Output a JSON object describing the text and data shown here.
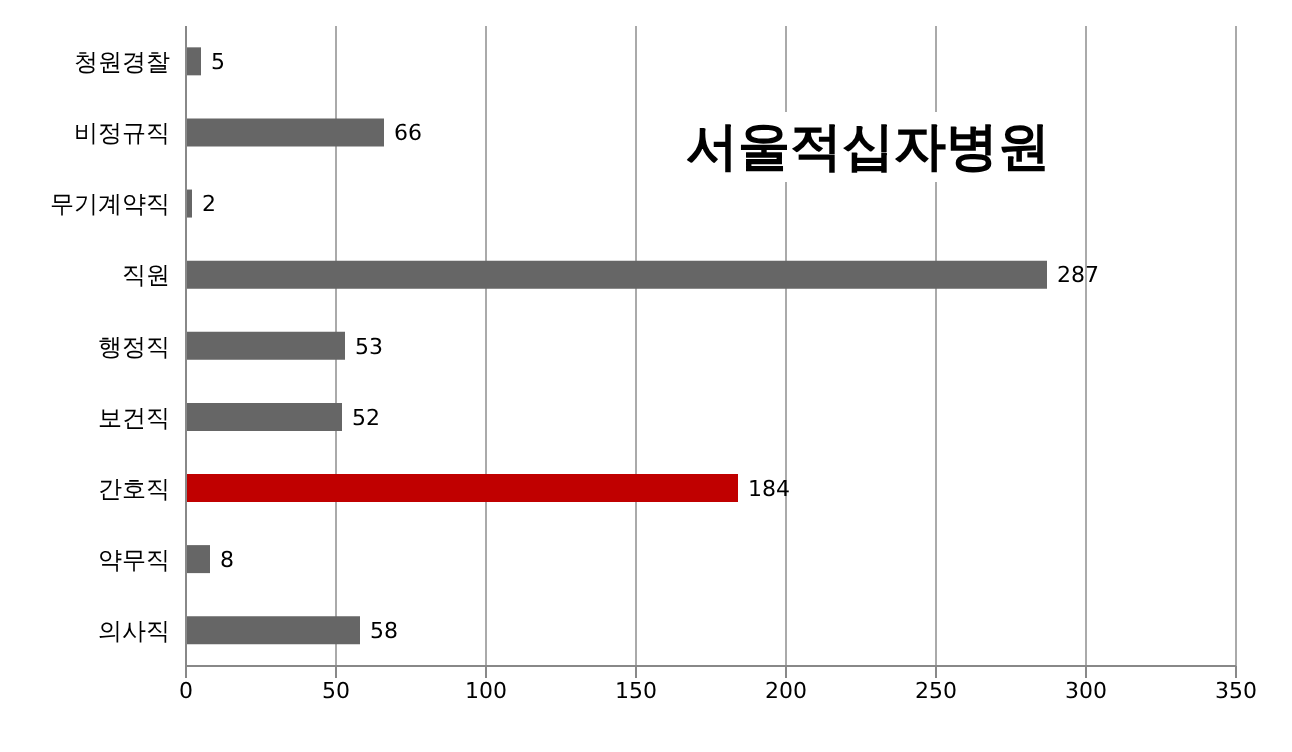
{
  "chart_data": {
    "type": "bar",
    "orientation": "horizontal",
    "title": "서울적십자병원",
    "categories": [
      "청원경찰",
      "비정규직",
      "무기계약직",
      "직원",
      "행정직",
      "보건직",
      "간호직",
      "약무직",
      "의사직"
    ],
    "values": [
      5,
      66,
      2,
      287,
      53,
      52,
      184,
      8,
      58
    ],
    "colors": [
      "#666666",
      "#666666",
      "#666666",
      "#666666",
      "#666666",
      "#666666",
      "#c00000",
      "#666666",
      "#666666"
    ],
    "xlim": [
      0,
      350
    ],
    "xticks": [
      0,
      50,
      100,
      150,
      200,
      250,
      300,
      350
    ],
    "grid": "x",
    "data_labels": true
  }
}
